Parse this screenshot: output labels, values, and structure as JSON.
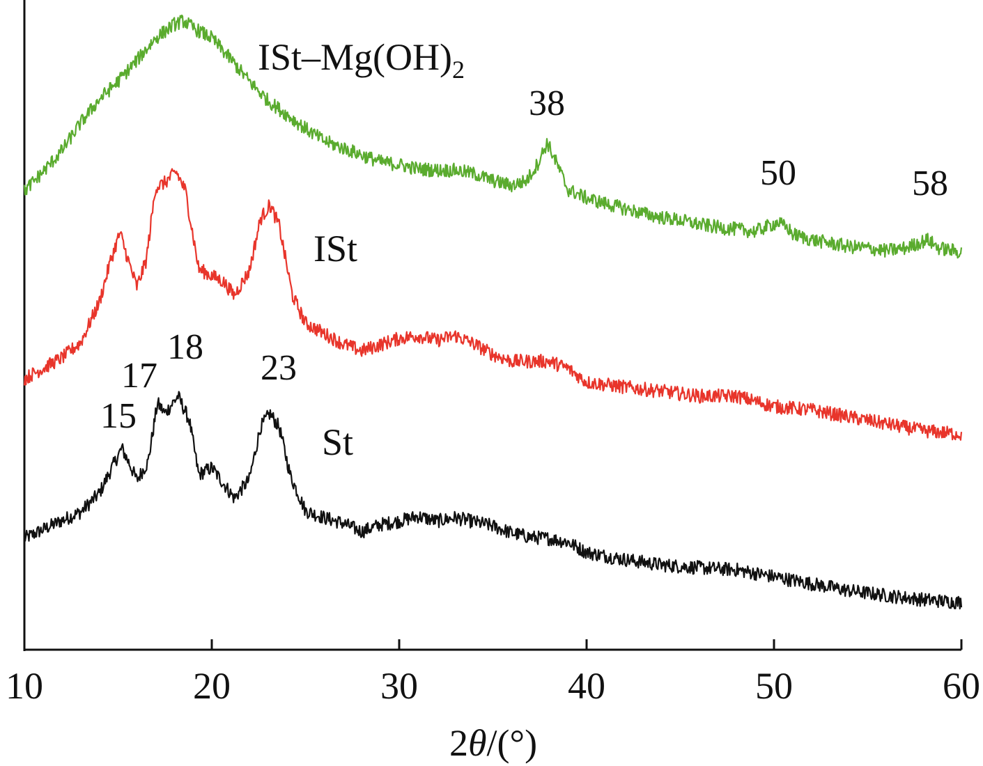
{
  "chart_data": {
    "type": "line",
    "title": "",
    "xlabel": {
      "prefix": "2",
      "symbol": "θ",
      "unit": "/(°)"
    },
    "ylabel": "",
    "xlim": [
      10,
      60
    ],
    "x_ticks": [
      10,
      20,
      30,
      40,
      50,
      60
    ],
    "y_ticks_shown": false,
    "grid": false,
    "legend": "none (curves labeled directly)",
    "series": [
      {
        "name": "St",
        "color": "#111111",
        "label_parts": [
          "St"
        ],
        "peak_annotations": [
          "15",
          "17",
          "18",
          "23"
        ],
        "points": [
          [
            10,
            160
          ],
          [
            12,
            186
          ],
          [
            13,
            198
          ],
          [
            14,
            225
          ],
          [
            14.6,
            258
          ],
          [
            15.2,
            290
          ],
          [
            15.6,
            268
          ],
          [
            16,
            244
          ],
          [
            16.6,
            270
          ],
          [
            17.1,
            355
          ],
          [
            17.5,
            340
          ],
          [
            18.2,
            365
          ],
          [
            18.8,
            330
          ],
          [
            19.3,
            252
          ],
          [
            20,
            262
          ],
          [
            20.6,
            240
          ],
          [
            21.2,
            218
          ],
          [
            22,
            245
          ],
          [
            22.6,
            320
          ],
          [
            23.1,
            340
          ],
          [
            23.6,
            320
          ],
          [
            24.2,
            250
          ],
          [
            25,
            200
          ],
          [
            26,
            190
          ],
          [
            27,
            182
          ],
          [
            28,
            170
          ],
          [
            29,
            180
          ],
          [
            30,
            185
          ],
          [
            31,
            192
          ],
          [
            32,
            185
          ],
          [
            33,
            190
          ],
          [
            34,
            184
          ],
          [
            35,
            178
          ],
          [
            36,
            168
          ],
          [
            37,
            162
          ],
          [
            38,
            160
          ],
          [
            39,
            155
          ],
          [
            40,
            140
          ],
          [
            42,
            130
          ],
          [
            44,
            122
          ],
          [
            46,
            118
          ],
          [
            48,
            115
          ],
          [
            50,
            105
          ],
          [
            52,
            95
          ],
          [
            54,
            85
          ],
          [
            56,
            78
          ],
          [
            58,
            72
          ],
          [
            60,
            68
          ]
        ]
      },
      {
        "name": "ISt",
        "color": "#e8352b",
        "label_parts": [
          "ISt"
        ],
        "peak_annotations": [],
        "points": [
          [
            10,
            390
          ],
          [
            12,
            420
          ],
          [
            13,
            442
          ],
          [
            14,
            500
          ],
          [
            14.6,
            560
          ],
          [
            15.1,
            600
          ],
          [
            15.6,
            555
          ],
          [
            16,
            522
          ],
          [
            16.5,
            560
          ],
          [
            17,
            665
          ],
          [
            17.5,
            672
          ],
          [
            18.1,
            688
          ],
          [
            18.6,
            660
          ],
          [
            19.3,
            548
          ],
          [
            20,
            538
          ],
          [
            20.6,
            530
          ],
          [
            21.2,
            510
          ],
          [
            22,
            545
          ],
          [
            22.6,
            620
          ],
          [
            23.1,
            640
          ],
          [
            23.6,
            610
          ],
          [
            24.3,
            510
          ],
          [
            25,
            470
          ],
          [
            26,
            455
          ],
          [
            27,
            440
          ],
          [
            28,
            430
          ],
          [
            30,
            448
          ],
          [
            31,
            452
          ],
          [
            32,
            445
          ],
          [
            33,
            452
          ],
          [
            34,
            440
          ],
          [
            35,
            425
          ],
          [
            36,
            415
          ],
          [
            38,
            415
          ],
          [
            39,
            405
          ],
          [
            40,
            385
          ],
          [
            42,
            378
          ],
          [
            44,
            372
          ],
          [
            46,
            365
          ],
          [
            48,
            365
          ],
          [
            50,
            350
          ],
          [
            52,
            345
          ],
          [
            54,
            335
          ],
          [
            56,
            325
          ],
          [
            58,
            315
          ],
          [
            60,
            310
          ]
        ]
      },
      {
        "name": "ISt–Mg(OH)2",
        "color": "#5aab2e",
        "label_parts": [
          "ISt–Mg(OH)",
          "2"
        ],
        "peak_annotations": [
          "38",
          "50",
          "58"
        ],
        "points": [
          [
            10,
            660
          ],
          [
            11,
            688
          ],
          [
            12,
            718
          ],
          [
            13,
            758
          ],
          [
            14,
            792
          ],
          [
            15,
            818
          ],
          [
            16,
            848
          ],
          [
            17,
            880
          ],
          [
            18,
            900
          ],
          [
            18.5,
            905
          ],
          [
            19,
            895
          ],
          [
            20,
            880
          ],
          [
            21,
            850
          ],
          [
            22,
            818
          ],
          [
            23,
            790
          ],
          [
            24,
            770
          ],
          [
            25,
            750
          ],
          [
            26,
            732
          ],
          [
            27,
            722
          ],
          [
            28,
            712
          ],
          [
            29,
            702
          ],
          [
            30,
            698
          ],
          [
            31,
            692
          ],
          [
            32,
            690
          ],
          [
            33,
            690
          ],
          [
            34,
            685
          ],
          [
            35,
            675
          ],
          [
            36,
            668
          ],
          [
            36.8,
            675
          ],
          [
            37.4,
            700
          ],
          [
            37.9,
            730
          ],
          [
            38.4,
            700
          ],
          [
            39,
            662
          ],
          [
            40,
            650
          ],
          [
            41,
            642
          ],
          [
            42,
            635
          ],
          [
            43,
            628
          ],
          [
            44,
            622
          ],
          [
            45,
            618
          ],
          [
            46,
            612
          ],
          [
            47,
            608
          ],
          [
            48,
            605
          ],
          [
            49,
            602
          ],
          [
            50.2,
            615
          ],
          [
            50.8,
            605
          ],
          [
            51,
            598
          ],
          [
            52,
            590
          ],
          [
            53,
            585
          ],
          [
            54,
            580
          ],
          [
            55,
            578
          ],
          [
            56,
            574
          ],
          [
            57,
            578
          ],
          [
            58.2,
            590
          ],
          [
            58.8,
            578
          ],
          [
            60,
            572
          ]
        ]
      }
    ]
  }
}
